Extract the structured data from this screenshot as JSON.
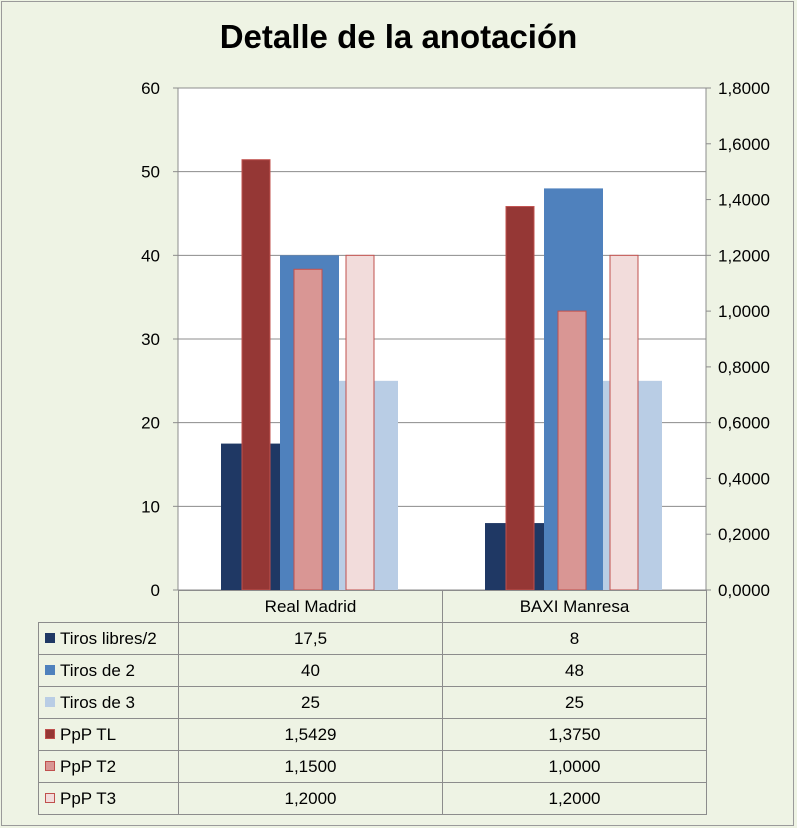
{
  "chart_data": {
    "type": "bar",
    "title": "Detalle de la anotación",
    "categories": [
      "Real Madrid",
      "BAXI Manresa"
    ],
    "primary_axis": {
      "range": [
        0,
        60
      ],
      "ticks": [
        "0",
        "10",
        "20",
        "30",
        "40",
        "50",
        "60"
      ]
    },
    "secondary_axis": {
      "range": [
        0,
        1.8
      ],
      "ticks": [
        "0,0000",
        "0,2000",
        "0,4000",
        "0,6000",
        "0,8000",
        "1,0000",
        "1,2000",
        "1,4000",
        "1,6000",
        "1,8000"
      ]
    },
    "series": [
      {
        "name": "Tiros libres/2",
        "axis": "primary",
        "color": "#1f3864",
        "values": [
          17.5,
          8
        ],
        "labels": [
          "17,5",
          "8"
        ]
      },
      {
        "name": "Tiros de 2",
        "axis": "primary",
        "color": "#4f81bd",
        "values": [
          40,
          48
        ],
        "labels": [
          "40",
          "48"
        ]
      },
      {
        "name": "Tiros de 3",
        "axis": "primary",
        "color": "#b9cde5",
        "values": [
          25,
          25
        ],
        "labels": [
          "25",
          "25"
        ]
      },
      {
        "name": "PpP TL",
        "axis": "secondary",
        "color": "#953735",
        "values": [
          1.5429,
          1.375
        ],
        "labels": [
          "1,5429",
          "1,3750"
        ]
      },
      {
        "name": "PpP T2",
        "axis": "secondary",
        "color": "#d99694",
        "values": [
          1.15,
          1.0
        ],
        "labels": [
          "1,1500",
          "1,0000"
        ]
      },
      {
        "name": "PpP T3",
        "axis": "secondary",
        "color": "#f2dcdb",
        "values": [
          1.2,
          1.2
        ],
        "labels": [
          "1,2000",
          "1,2000"
        ]
      }
    ],
    "legend": "data-table"
  }
}
